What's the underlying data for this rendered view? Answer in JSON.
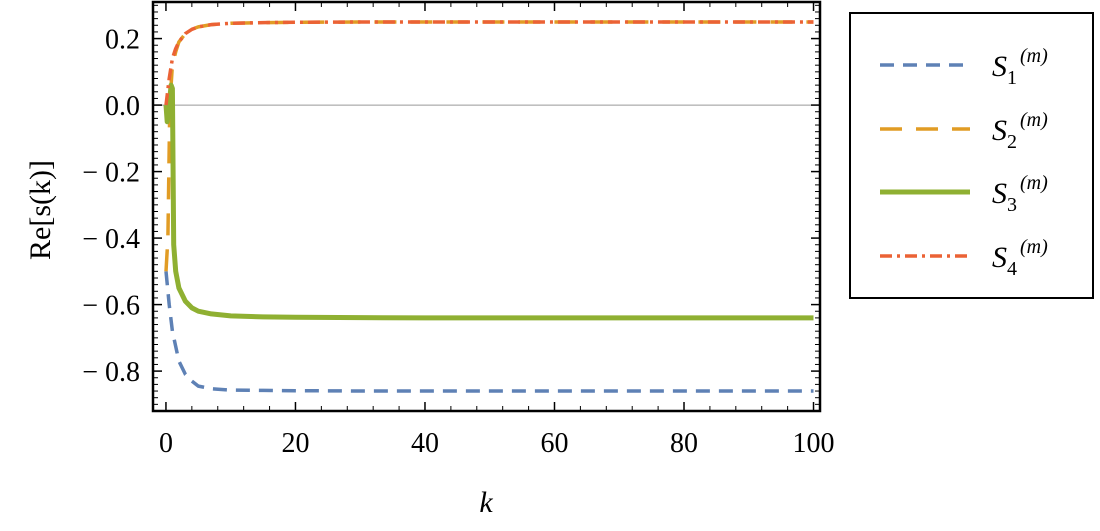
{
  "chart_data": {
    "type": "line",
    "ylabel": "Re[s(k)]",
    "xlabel": "k",
    "xlim": [
      -2,
      101
    ],
    "ylim": [
      -0.92,
      0.31
    ],
    "x_ticks": [
      0,
      20,
      40,
      60,
      80,
      100
    ],
    "x_tick_labels": [
      "0",
      "20",
      "40",
      "60",
      "80",
      "100"
    ],
    "y_ticks": [
      0.2,
      0.0,
      -0.2,
      -0.4,
      -0.6,
      -0.8
    ],
    "y_tick_labels": [
      "0.2",
      "0.0",
      "− 0.2",
      "− 0.4",
      "− 0.6",
      "− 0.8"
    ],
    "grid": false,
    "zero_line": true,
    "legend_placement": "right",
    "series": [
      {
        "name": "S1(m)",
        "label_main": "S",
        "label_sub": "1",
        "label_sup": "(m)",
        "color": "#5e81b5",
        "style": "dashed",
        "x": [
          0,
          0.5,
          1,
          2,
          3,
          4,
          5,
          7,
          10,
          15,
          20,
          30,
          40,
          60,
          80,
          100
        ],
        "y": [
          -0.5,
          -0.6,
          -0.68,
          -0.77,
          -0.81,
          -0.83,
          -0.845,
          -0.853,
          -0.857,
          -0.858,
          -0.859,
          -0.86,
          -0.86,
          -0.86,
          -0.86,
          -0.86
        ]
      },
      {
        "name": "S2(m)",
        "label_main": "S",
        "label_sub": "2",
        "label_sup": "(m)",
        "color": "#e19c24",
        "style": "longdash",
        "x": [
          0,
          0.3,
          0.6,
          1,
          1.5,
          2,
          3,
          4,
          5,
          7,
          10,
          15,
          20,
          30,
          40,
          60,
          80,
          100
        ],
        "y": [
          -0.5,
          -0.4,
          0.0,
          0.12,
          0.16,
          0.19,
          0.215,
          0.228,
          0.235,
          0.242,
          0.246,
          0.248,
          0.249,
          0.25,
          0.25,
          0.25,
          0.25,
          0.25
        ]
      },
      {
        "name": "S3(m)",
        "label_main": "S",
        "label_sub": "3",
        "label_sup": "(m)",
        "color": "#8fb032",
        "style": "solid",
        "x": [
          0,
          0.2,
          0.5,
          0.8,
          1,
          1.2,
          1.5,
          2,
          3,
          4,
          5,
          7,
          10,
          15,
          20,
          30,
          40,
          60,
          80,
          100
        ],
        "y": [
          0.0,
          -0.05,
          0.0,
          0.06,
          0.05,
          -0.42,
          -0.5,
          -0.55,
          -0.59,
          -0.61,
          -0.62,
          -0.628,
          -0.634,
          -0.637,
          -0.638,
          -0.639,
          -0.64,
          -0.64,
          -0.64,
          -0.64
        ]
      },
      {
        "name": "S4(m)",
        "label_main": "S",
        "label_sub": "4",
        "label_sup": "(m)",
        "color": "#eb6235",
        "style": "dashdot",
        "x": [
          0,
          0.2,
          0.5,
          1,
          1.5,
          2,
          3,
          4,
          5,
          7,
          10,
          15,
          20,
          30,
          40,
          60,
          80,
          100
        ],
        "y": [
          0.0,
          0.03,
          0.08,
          0.14,
          0.17,
          0.19,
          0.215,
          0.228,
          0.235,
          0.242,
          0.246,
          0.248,
          0.249,
          0.25,
          0.25,
          0.25,
          0.25,
          0.25
        ]
      }
    ]
  }
}
